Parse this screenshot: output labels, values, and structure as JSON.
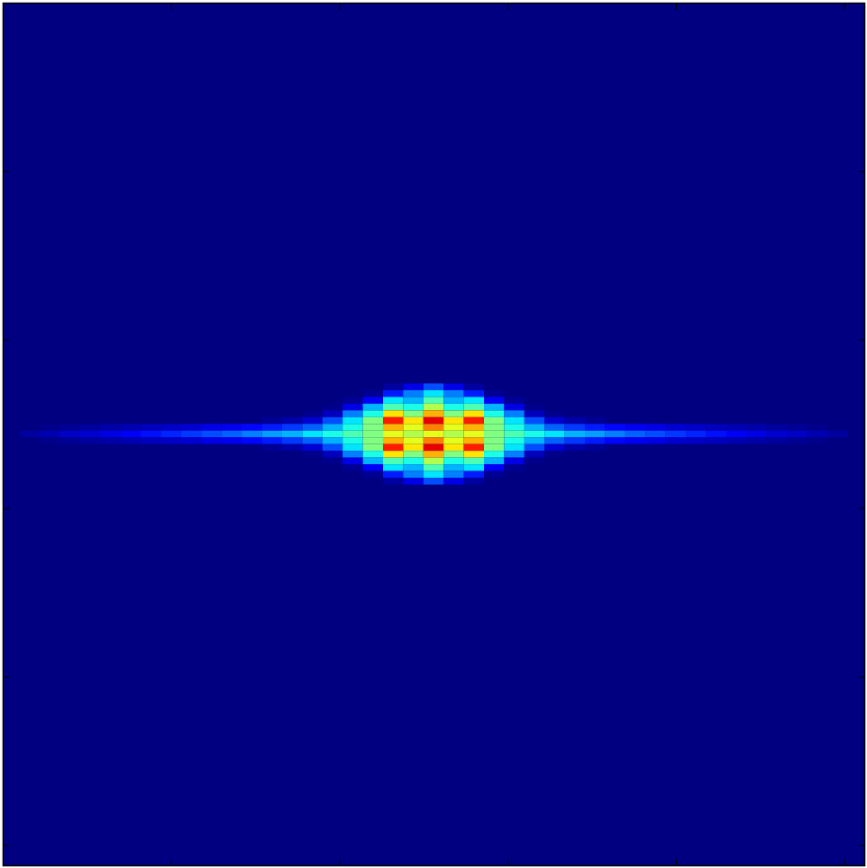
{
  "chart_data": {
    "type": "heatmap",
    "xlim": [
      0,
      512
    ],
    "ylim": [
      512,
      0
    ],
    "xticks": [
      0,
      100,
      200,
      300,
      400,
      500
    ],
    "yticks": [
      0,
      100,
      200,
      300,
      400,
      500
    ],
    "tick_labels": false,
    "zlim": [
      0,
      1
    ],
    "x": [
      16,
      28,
      40,
      52,
      64,
      76,
      88,
      100,
      112,
      124,
      136,
      148,
      160,
      172,
      184,
      196,
      208,
      220,
      232,
      244,
      256,
      268,
      280,
      292,
      304,
      316,
      328,
      340,
      352,
      364,
      376,
      388,
      400,
      412,
      424,
      436,
      448,
      460,
      472,
      484,
      496
    ],
    "y": [
      228,
      232,
      236,
      240,
      244,
      248,
      252,
      256,
      260,
      264,
      268,
      272,
      276,
      280,
      284
    ],
    "z": [
      [
        0,
        0,
        0,
        0,
        0,
        0,
        0,
        0,
        0,
        0,
        0,
        0,
        0,
        0,
        0,
        0,
        0,
        0,
        0.03,
        0.1,
        0.2,
        0.1,
        0.03,
        0,
        0,
        0,
        0,
        0,
        0,
        0,
        0,
        0,
        0,
        0,
        0,
        0,
        0,
        0,
        0,
        0,
        0
      ],
      [
        0,
        0,
        0,
        0,
        0,
        0,
        0,
        0,
        0,
        0,
        0,
        0,
        0,
        0,
        0,
        0,
        0,
        0.02,
        0.15,
        0.25,
        0.35,
        0.25,
        0.15,
        0.02,
        0,
        0,
        0,
        0,
        0,
        0,
        0,
        0,
        0,
        0,
        0,
        0,
        0,
        0,
        0,
        0,
        0
      ],
      [
        0,
        0,
        0,
        0,
        0,
        0,
        0,
        0,
        0,
        0,
        0,
        0,
        0,
        0,
        0,
        0,
        0.02,
        0.12,
        0.35,
        0.3,
        0.45,
        0.3,
        0.35,
        0.12,
        0.02,
        0,
        0,
        0,
        0,
        0,
        0,
        0,
        0,
        0,
        0,
        0,
        0,
        0,
        0,
        0,
        0
      ],
      [
        0,
        0,
        0,
        0,
        0,
        0,
        0,
        0,
        0,
        0,
        0,
        0,
        0,
        0,
        0,
        0.01,
        0.1,
        0.3,
        0.45,
        0.4,
        0.55,
        0.4,
        0.45,
        0.3,
        0.1,
        0.01,
        0,
        0,
        0,
        0,
        0,
        0,
        0,
        0,
        0,
        0,
        0,
        0,
        0,
        0,
        0
      ],
      [
        0,
        0,
        0,
        0,
        0,
        0,
        0,
        0,
        0,
        0,
        0,
        0,
        0,
        0,
        0.01,
        0.06,
        0.25,
        0.4,
        0.65,
        0.5,
        0.7,
        0.5,
        0.65,
        0.4,
        0.25,
        0.06,
        0.01,
        0,
        0,
        0,
        0,
        0,
        0,
        0,
        0,
        0,
        0,
        0,
        0,
        0,
        0
      ],
      [
        0,
        0,
        0,
        0,
        0,
        0,
        0,
        0,
        0,
        0,
        0,
        0,
        0.02,
        0.04,
        0.08,
        0.2,
        0.35,
        0.5,
        0.85,
        0.65,
        0.9,
        0.65,
        0.85,
        0.5,
        0.35,
        0.2,
        0.08,
        0.04,
        0.02,
        0,
        0,
        0,
        0,
        0,
        0,
        0,
        0,
        0,
        0,
        0,
        0
      ],
      [
        0,
        0.01,
        0.02,
        0.03,
        0.04,
        0.05,
        0.06,
        0.07,
        0.08,
        0.1,
        0.11,
        0.13,
        0.15,
        0.18,
        0.22,
        0.3,
        0.4,
        0.5,
        0.7,
        0.6,
        0.75,
        0.6,
        0.7,
        0.5,
        0.4,
        0.3,
        0.22,
        0.18,
        0.15,
        0.13,
        0.11,
        0.1,
        0.08,
        0.07,
        0.06,
        0.05,
        0.04,
        0.03,
        0.02,
        0.01,
        0
      ],
      [
        0.03,
        0.05,
        0.07,
        0.08,
        0.1,
        0.12,
        0.14,
        0.16,
        0.18,
        0.2,
        0.22,
        0.25,
        0.28,
        0.3,
        0.35,
        0.4,
        0.45,
        0.5,
        0.6,
        0.55,
        0.6,
        0.55,
        0.6,
        0.5,
        0.45,
        0.4,
        0.35,
        0.3,
        0.28,
        0.25,
        0.22,
        0.2,
        0.18,
        0.16,
        0.14,
        0.12,
        0.1,
        0.08,
        0.07,
        0.05,
        0.03
      ],
      [
        0,
        0.01,
        0.02,
        0.03,
        0.04,
        0.05,
        0.06,
        0.07,
        0.08,
        0.1,
        0.11,
        0.13,
        0.15,
        0.18,
        0.22,
        0.3,
        0.4,
        0.5,
        0.7,
        0.6,
        0.75,
        0.6,
        0.7,
        0.5,
        0.4,
        0.3,
        0.22,
        0.18,
        0.15,
        0.13,
        0.11,
        0.1,
        0.08,
        0.07,
        0.06,
        0.05,
        0.04,
        0.03,
        0.02,
        0.01,
        0
      ],
      [
        0,
        0,
        0,
        0,
        0,
        0,
        0,
        0,
        0,
        0,
        0,
        0,
        0.02,
        0.04,
        0.08,
        0.2,
        0.35,
        0.5,
        0.85,
        0.65,
        0.9,
        0.65,
        0.85,
        0.5,
        0.35,
        0.2,
        0.08,
        0.04,
        0.02,
        0,
        0,
        0,
        0,
        0,
        0,
        0,
        0,
        0,
        0,
        0,
        0
      ],
      [
        0,
        0,
        0,
        0,
        0,
        0,
        0,
        0,
        0,
        0,
        0,
        0,
        0,
        0,
        0.01,
        0.06,
        0.25,
        0.4,
        0.65,
        0.5,
        0.7,
        0.5,
        0.65,
        0.4,
        0.25,
        0.06,
        0.01,
        0,
        0,
        0,
        0,
        0,
        0,
        0,
        0,
        0,
        0,
        0,
        0,
        0,
        0
      ],
      [
        0,
        0,
        0,
        0,
        0,
        0,
        0,
        0,
        0,
        0,
        0,
        0,
        0,
        0,
        0,
        0.01,
        0.1,
        0.3,
        0.45,
        0.4,
        0.55,
        0.4,
        0.45,
        0.3,
        0.1,
        0.01,
        0,
        0,
        0,
        0,
        0,
        0,
        0,
        0,
        0,
        0,
        0,
        0,
        0,
        0,
        0
      ],
      [
        0,
        0,
        0,
        0,
        0,
        0,
        0,
        0,
        0,
        0,
        0,
        0,
        0,
        0,
        0,
        0,
        0.02,
        0.12,
        0.35,
        0.3,
        0.45,
        0.3,
        0.35,
        0.12,
        0.02,
        0,
        0,
        0,
        0,
        0,
        0,
        0,
        0,
        0,
        0,
        0,
        0,
        0,
        0,
        0,
        0
      ],
      [
        0,
        0,
        0,
        0,
        0,
        0,
        0,
        0,
        0,
        0,
        0,
        0,
        0,
        0,
        0,
        0,
        0,
        0.02,
        0.15,
        0.25,
        0.35,
        0.25,
        0.15,
        0.02,
        0,
        0,
        0,
        0,
        0,
        0,
        0,
        0,
        0,
        0,
        0,
        0,
        0,
        0,
        0,
        0,
        0
      ],
      [
        0,
        0,
        0,
        0,
        0,
        0,
        0,
        0,
        0,
        0,
        0,
        0,
        0,
        0,
        0,
        0,
        0,
        0,
        0.03,
        0.1,
        0.2,
        0.1,
        0.03,
        0,
        0,
        0,
        0,
        0,
        0,
        0,
        0,
        0,
        0,
        0,
        0,
        0,
        0,
        0,
        0,
        0,
        0
      ]
    ]
  }
}
